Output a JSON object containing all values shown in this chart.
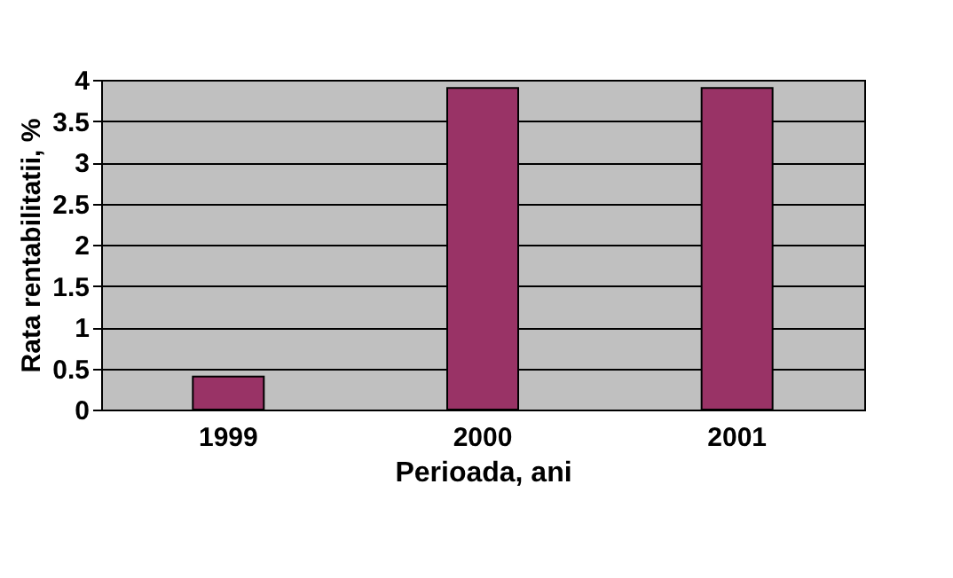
{
  "chart_data": {
    "type": "bar",
    "xlabel": "Perioada, ani",
    "ylabel": "Rata rentabilitatii, %",
    "categories": [
      "1999",
      "2000",
      "2001"
    ],
    "values": [
      0.4,
      3.9,
      3.9
    ],
    "color": "#993366",
    "ylim": [
      0,
      4
    ],
    "yticks": [
      0,
      0.5,
      1,
      1.5,
      2,
      2.5,
      3,
      3.5,
      4
    ],
    "grid": "y"
  }
}
